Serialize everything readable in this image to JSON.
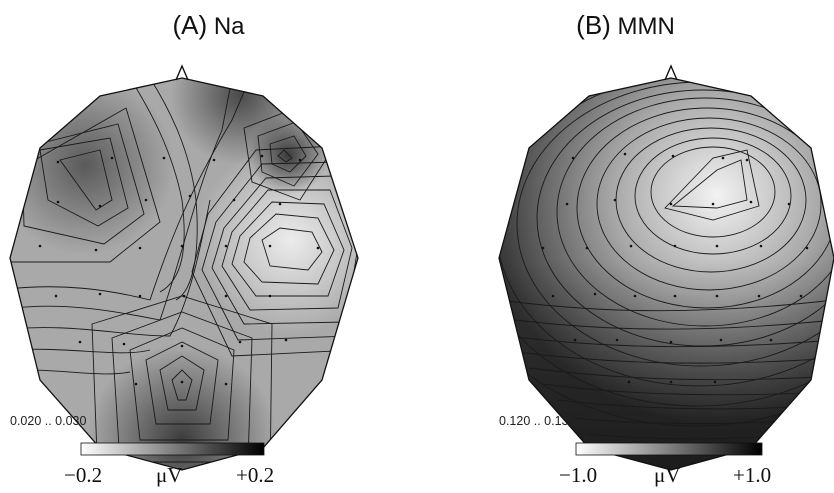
{
  "panels": [
    {
      "id": "A",
      "title_letter": "(A)",
      "title_label": "Na",
      "time_window": "0.020 .. 0.030",
      "colorbar": {
        "min_label": "−0.2",
        "unit_label": "μV",
        "max_label": "+0.2"
      },
      "map": {
        "negative_peak": "front-right",
        "positive_peak": "occipital-center"
      }
    },
    {
      "id": "B",
      "title_letter": "(B)",
      "title_label": "MMN",
      "time_window": "0.120 .. 0.130",
      "colorbar": {
        "min_label": "−1.0",
        "unit_label": "μV",
        "max_label": "+1.0"
      },
      "map": {
        "negative_peak": "fronto-central",
        "positive_peak": "posterior"
      }
    }
  ],
  "colors": {
    "map_light": "#eeeeee",
    "map_dark": "#2e2e2e",
    "contour": "#1a1a1a"
  }
}
